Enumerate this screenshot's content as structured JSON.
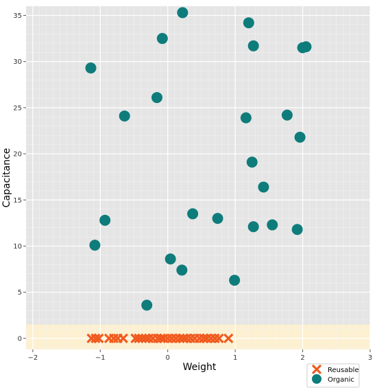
{
  "chart_data": {
    "type": "scatter",
    "xlabel": "Weight",
    "ylabel": "Capacitance",
    "xlim": [
      -2.1,
      3.0
    ],
    "ylim": [
      -1.2,
      36.0
    ],
    "x_ticks": [
      -2,
      -1,
      0,
      1,
      2,
      3
    ],
    "y_ticks": [
      0,
      5,
      10,
      15,
      20,
      25,
      30,
      35
    ],
    "grid": true,
    "legend_position": "bottom-right",
    "band": {
      "y_range": [
        -1.2,
        1.5
      ],
      "color": "#fdf0d0"
    },
    "series": [
      {
        "name": "Reusable",
        "marker": "x",
        "color": "#f05a1e",
        "points": [
          [
            -1.13,
            0
          ],
          [
            -1.07,
            0
          ],
          [
            -1.02,
            0
          ],
          [
            -0.87,
            0
          ],
          [
            -0.8,
            0
          ],
          [
            -0.74,
            0
          ],
          [
            -0.66,
            0
          ],
          [
            -0.48,
            0
          ],
          [
            -0.43,
            0
          ],
          [
            -0.38,
            0
          ],
          [
            -0.33,
            0
          ],
          [
            -0.28,
            0
          ],
          [
            -0.22,
            0
          ],
          [
            -0.15,
            0
          ],
          [
            -0.1,
            0
          ],
          [
            -0.06,
            0
          ],
          [
            0.0,
            0
          ],
          [
            0.06,
            0
          ],
          [
            0.12,
            0
          ],
          [
            0.18,
            0
          ],
          [
            0.23,
            0
          ],
          [
            0.28,
            0
          ],
          [
            0.34,
            0
          ],
          [
            0.4,
            0
          ],
          [
            0.47,
            0
          ],
          [
            0.53,
            0
          ],
          [
            0.58,
            0
          ],
          [
            0.64,
            0
          ],
          [
            0.7,
            0
          ],
          [
            0.76,
            0
          ],
          [
            0.9,
            0
          ]
        ]
      },
      {
        "name": "Organic",
        "marker": "circle",
        "color": "#0e7c7b",
        "points": [
          [
            0.22,
            35.3
          ],
          [
            1.2,
            34.2
          ],
          [
            -0.08,
            32.5
          ],
          [
            1.27,
            31.7
          ],
          [
            2.0,
            31.5
          ],
          [
            2.05,
            31.6
          ],
          [
            -1.14,
            29.3
          ],
          [
            -0.16,
            26.1
          ],
          [
            -0.64,
            24.1
          ],
          [
            1.16,
            23.9
          ],
          [
            1.77,
            24.2
          ],
          [
            1.96,
            21.8
          ],
          [
            1.25,
            19.1
          ],
          [
            1.42,
            16.4
          ],
          [
            0.37,
            13.5
          ],
          [
            0.74,
            13.0
          ],
          [
            -0.93,
            12.8
          ],
          [
            1.27,
            12.1
          ],
          [
            1.55,
            12.3
          ],
          [
            1.92,
            11.8
          ],
          [
            -1.08,
            10.1
          ],
          [
            0.04,
            8.6
          ],
          [
            0.21,
            7.4
          ],
          [
            0.99,
            6.3
          ],
          [
            -0.31,
            3.6
          ]
        ]
      }
    ]
  }
}
